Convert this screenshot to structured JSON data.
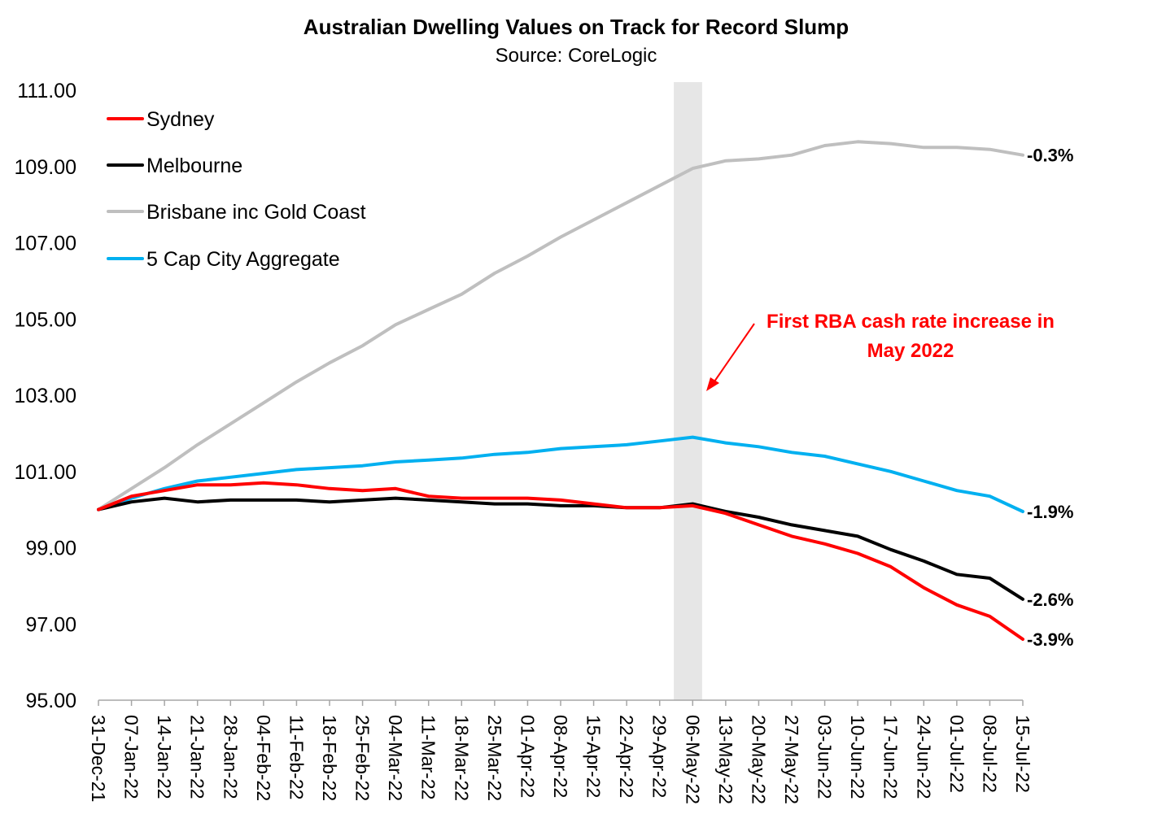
{
  "chart_data": {
    "type": "line",
    "title": "Australian Dwelling Values on Track for Record Slump",
    "subtitle": "Source: CoreLogic",
    "xlabel": "",
    "ylabel": "",
    "ylim": [
      95,
      111
    ],
    "yticks": [
      "95.00",
      "97.00",
      "99.00",
      "101.00",
      "103.00",
      "105.00",
      "107.00",
      "109.00",
      "111.00"
    ],
    "xticks": [
      "31-Dec-21",
      "07-Jan-22",
      "14-Jan-22",
      "21-Jan-22",
      "28-Jan-22",
      "04-Feb-22",
      "11-Feb-22",
      "18-Feb-22",
      "25-Feb-22",
      "04-Mar-22",
      "11-Mar-22",
      "18-Mar-22",
      "25-Mar-22",
      "01-Apr-22",
      "08-Apr-22",
      "15-Apr-22",
      "22-Apr-22",
      "29-Apr-22",
      "06-May-22",
      "13-May-22",
      "20-May-22",
      "27-May-22",
      "03-Jun-22",
      "10-Jun-22",
      "17-Jun-22",
      "24-Jun-22",
      "01-Jul-22",
      "08-Jul-22",
      "15-Jul-22"
    ],
    "x_day_range": [
      0,
      196
    ],
    "shaded_region": {
      "from_day": 122,
      "to_day": 128,
      "color": "#e6e6e6"
    },
    "annotation": {
      "lines": [
        "First RBA cash rate increase in",
        "May 2022"
      ],
      "color": "#ff0000"
    },
    "series": [
      {
        "name": "Sydney",
        "color": "#ff0000",
        "end_label": "-3.9%",
        "x": [
          0,
          7,
          14,
          21,
          28,
          35,
          42,
          49,
          56,
          63,
          70,
          77,
          84,
          91,
          98,
          105,
          112,
          119,
          126,
          133,
          140,
          147,
          154,
          161,
          168,
          175,
          182,
          189,
          196
        ],
        "values": [
          100.0,
          100.35,
          100.5,
          100.65,
          100.65,
          100.7,
          100.65,
          100.55,
          100.5,
          100.55,
          100.35,
          100.3,
          100.3,
          100.3,
          100.25,
          100.15,
          100.05,
          100.05,
          100.1,
          99.9,
          99.6,
          99.3,
          99.1,
          98.85,
          98.5,
          97.95,
          97.5,
          97.2,
          96.6
        ]
      },
      {
        "name": "Melbourne",
        "color": "#000000",
        "end_label": "-2.6%",
        "x": [
          0,
          7,
          14,
          21,
          28,
          35,
          42,
          49,
          56,
          63,
          70,
          77,
          84,
          91,
          98,
          105,
          112,
          119,
          126,
          133,
          140,
          147,
          154,
          161,
          168,
          175,
          182,
          189,
          196
        ],
        "values": [
          100.0,
          100.2,
          100.3,
          100.2,
          100.25,
          100.25,
          100.25,
          100.2,
          100.25,
          100.3,
          100.25,
          100.2,
          100.15,
          100.15,
          100.1,
          100.1,
          100.05,
          100.05,
          100.15,
          99.95,
          99.8,
          99.6,
          99.45,
          99.3,
          98.95,
          98.65,
          98.3,
          98.2,
          97.65
        ]
      },
      {
        "name": "Brisbane inc Gold Coast",
        "color": "#bfbfbf",
        "end_label": "-0.3%",
        "x": [
          0,
          7,
          14,
          21,
          28,
          35,
          42,
          49,
          56,
          63,
          70,
          77,
          84,
          91,
          98,
          105,
          112,
          119,
          126,
          133,
          140,
          147,
          154,
          161,
          168,
          175,
          182,
          189,
          196
        ],
        "values": [
          100.0,
          100.55,
          101.1,
          101.7,
          102.25,
          102.8,
          103.35,
          103.85,
          104.3,
          104.85,
          105.25,
          105.65,
          106.2,
          106.65,
          107.15,
          107.6,
          108.05,
          108.5,
          108.95,
          109.15,
          109.2,
          109.3,
          109.55,
          109.65,
          109.6,
          109.5,
          109.5,
          109.45,
          109.3
        ]
      },
      {
        "name": "5 Cap City Aggregate",
        "color": "#00b0f0",
        "end_label": "-1.9%",
        "x": [
          0,
          7,
          14,
          21,
          28,
          35,
          42,
          49,
          56,
          63,
          70,
          77,
          84,
          91,
          98,
          105,
          112,
          119,
          126,
          133,
          140,
          147,
          154,
          161,
          168,
          175,
          182,
          189,
          196
        ],
        "values": [
          100.0,
          100.3,
          100.55,
          100.75,
          100.85,
          100.95,
          101.05,
          101.1,
          101.15,
          101.25,
          101.3,
          101.35,
          101.45,
          101.5,
          101.6,
          101.65,
          101.7,
          101.8,
          101.9,
          101.75,
          101.65,
          101.5,
          101.4,
          101.2,
          101.0,
          100.75,
          100.5,
          100.35,
          99.95
        ]
      }
    ]
  }
}
